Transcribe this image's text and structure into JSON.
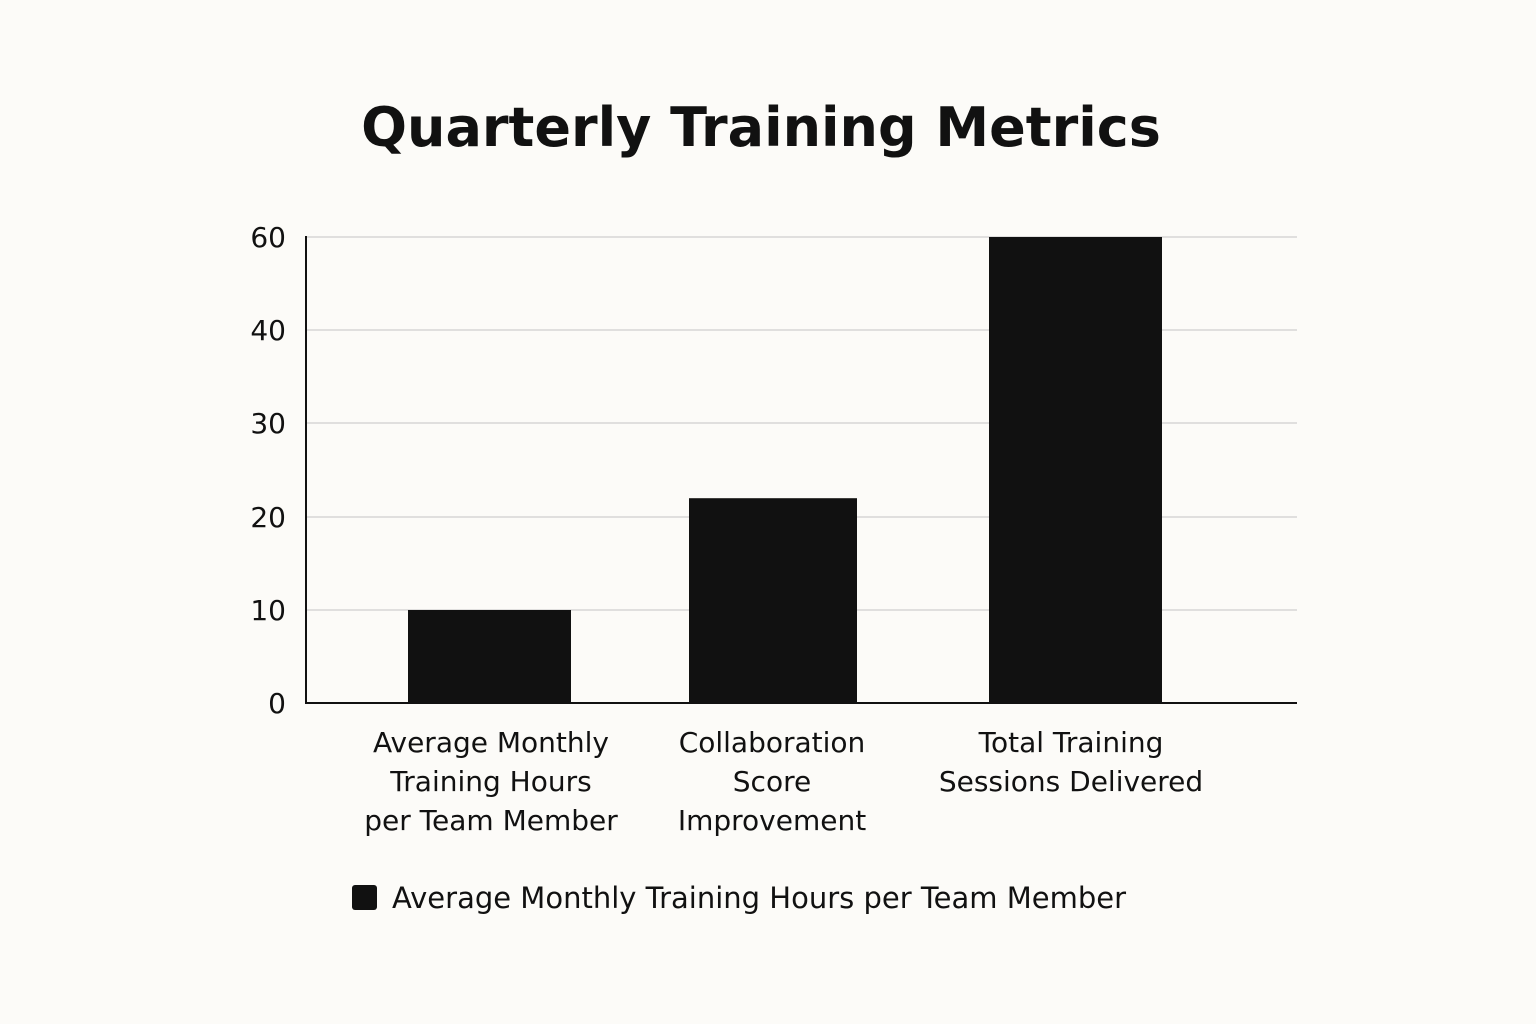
{
  "chart_data": {
    "type": "bar",
    "title": "Quarterly Training Metrics",
    "xlabel": "",
    "ylabel": "",
    "categories": [
      [
        "Average Monthly",
        "Training Hours",
        "per Team Member"
      ],
      [
        "Collaboration",
        "Score",
        "Improvement"
      ],
      [
        "Total Training",
        "Sessions Delivered"
      ]
    ],
    "y_ticks": [
      {
        "value": 0,
        "label": "0"
      },
      {
        "value": 10,
        "label": "10"
      },
      {
        "value": 20,
        "label": "20"
      },
      {
        "value": 30,
        "label": "30"
      },
      {
        "value": 40,
        "label": "40"
      },
      {
        "value": 60,
        "label": "60"
      }
    ],
    "series": [
      {
        "name": "Average Monthly Training Hours per Team Member",
        "values": [
          10,
          22,
          60
        ],
        "color": "#111111"
      }
    ],
    "ylim": [
      0,
      60
    ],
    "grid": true,
    "legend_position": "bottom"
  }
}
